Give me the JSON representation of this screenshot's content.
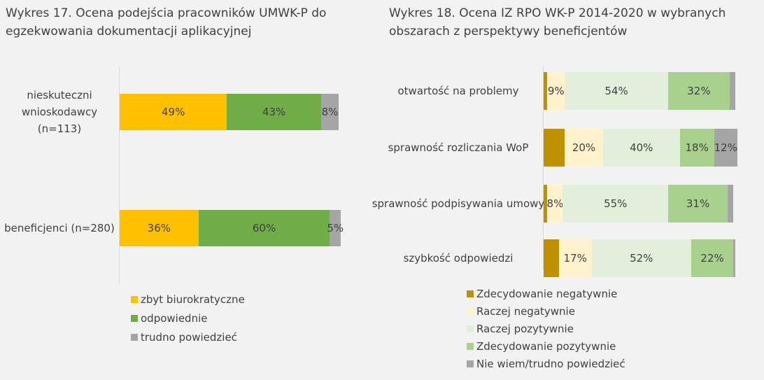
{
  "chart_data": [
    {
      "type": "bar",
      "orientation": "horizontal",
      "stacked": true,
      "title": "Wykres 17. Ocena podejścia pracowników UMWK-P do egzekwowania dokumentacji aplikacyjnej",
      "categories": [
        "nieskuteczni wnioskodawcy (n=113)",
        "beneficjenci (n=280)"
      ],
      "series": [
        {
          "name": "zbyt biurokratyczne",
          "color": "#ffc000",
          "values": [
            49,
            36
          ],
          "value_labels": [
            "49%",
            "36%"
          ]
        },
        {
          "name": "odpowiednie",
          "color": "#70ad47",
          "values": [
            43,
            60
          ],
          "value_labels": [
            "43%",
            "60%"
          ]
        },
        {
          "name": "trudno powiedzieć",
          "color": "#a5a5a5",
          "values": [
            8,
            5
          ],
          "value_labels": [
            "8%",
            "5%"
          ]
        }
      ],
      "xlim": [
        0,
        100
      ]
    },
    {
      "type": "bar",
      "orientation": "horizontal",
      "stacked": true,
      "title": "Wykres 18. Ocena IZ RPO WK-P 2014-2020 w wybranych obszarach z perspektywy beneficjentów",
      "categories": [
        "otwartość na problemy",
        "sprawność rozliczania WoP",
        "sprawność podpisywania umowy",
        "szybkość odpowiedzi"
      ],
      "series": [
        {
          "name": "Zdecydowanie negatywnie",
          "color": "#bf9000",
          "values": [
            2,
            11,
            2,
            8
          ],
          "value_labels": [
            null,
            null,
            null,
            null
          ]
        },
        {
          "name": "Raczej negatywnie",
          "color": "#fff2cc",
          "values": [
            9,
            20,
            8,
            17
          ],
          "value_labels": [
            "9%",
            "20%",
            "8%",
            "17%"
          ]
        },
        {
          "name": "Raczej pozytywnie",
          "color": "#e2efda",
          "values": [
            54,
            40,
            55,
            52
          ],
          "value_labels": [
            "54%",
            "40%",
            "55%",
            "52%"
          ]
        },
        {
          "name": "Zdecydowanie pozytywnie",
          "color": "#a9d18e",
          "values": [
            32,
            18,
            31,
            22
          ],
          "value_labels": [
            "32%",
            "18%",
            "31%",
            "22%"
          ]
        },
        {
          "name": "Nie wiem/trudno powiedzieć",
          "color": "#a5a5a5",
          "values": [
            3,
            12,
            3,
            1
          ],
          "value_labels": [
            null,
            "12%",
            null,
            null
          ]
        }
      ],
      "xlim": [
        0,
        100
      ]
    }
  ]
}
